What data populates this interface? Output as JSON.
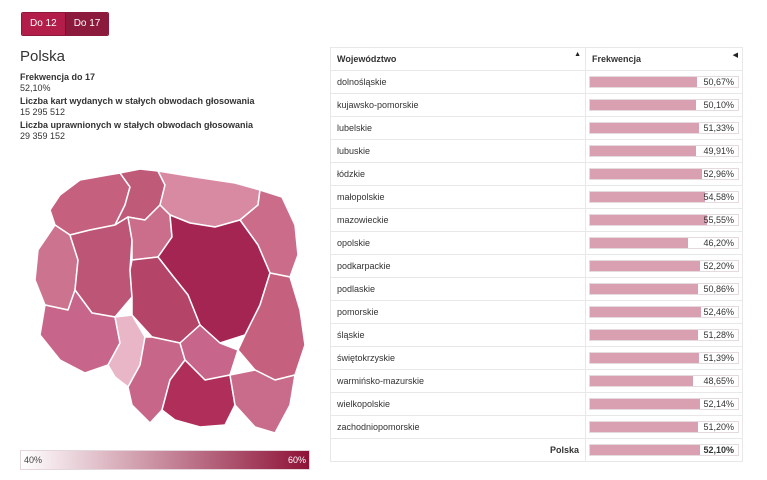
{
  "tabs": [
    {
      "label": "Do 12",
      "active": false
    },
    {
      "label": "Do 17",
      "active": true
    }
  ],
  "country": "Polska",
  "stats": [
    {
      "label": "Frekwencja do 17",
      "value": "52,10%"
    },
    {
      "label": "Liczba kart wydanych w stałych obwodach głosowania",
      "value": "15 295 512"
    },
    {
      "label": "Liczba uprawnionych w stałych obwodach głosowania",
      "value": "29 359 152"
    }
  ],
  "scale": {
    "min_label": "40%",
    "max_label": "60%",
    "min_color": "#ffffff",
    "max_color": "#8e1238"
  },
  "table": {
    "col_region": "Województwo",
    "col_turnout": "Frekwencja",
    "rows": [
      {
        "name": "dolnośląskie",
        "value": "50,67%",
        "pct": 50.67
      },
      {
        "name": "kujawsko-pomorskie",
        "value": "50,10%",
        "pct": 50.1
      },
      {
        "name": "lubelskie",
        "value": "51,33%",
        "pct": 51.33
      },
      {
        "name": "lubuskie",
        "value": "49,91%",
        "pct": 49.91
      },
      {
        "name": "łódzkie",
        "value": "52,96%",
        "pct": 52.96
      },
      {
        "name": "małopolskie",
        "value": "54,58%",
        "pct": 54.58
      },
      {
        "name": "mazowieckie",
        "value": "55,55%",
        "pct": 55.55
      },
      {
        "name": "opolskie",
        "value": "46,20%",
        "pct": 46.2
      },
      {
        "name": "podkarpackie",
        "value": "52,20%",
        "pct": 52.2
      },
      {
        "name": "podlaskie",
        "value": "50,86%",
        "pct": 50.86
      },
      {
        "name": "pomorskie",
        "value": "52,46%",
        "pct": 52.46
      },
      {
        "name": "śląskie",
        "value": "51,28%",
        "pct": 51.28
      },
      {
        "name": "świętokrzyskie",
        "value": "51,39%",
        "pct": 51.39
      },
      {
        "name": "warmińsko-mazurskie",
        "value": "48,65%",
        "pct": 48.65
      },
      {
        "name": "wielkopolskie",
        "value": "52,14%",
        "pct": 52.14
      },
      {
        "name": "zachodniopomorskie",
        "value": "51,20%",
        "pct": 51.2
      }
    ],
    "total": {
      "name": "Polska",
      "value": "52,10%",
      "pct": 52.1
    }
  },
  "colors": {
    "accent": "#b31d4a",
    "accent_dark": "#8c1a3c",
    "bar": "#d9a0b1"
  }
}
